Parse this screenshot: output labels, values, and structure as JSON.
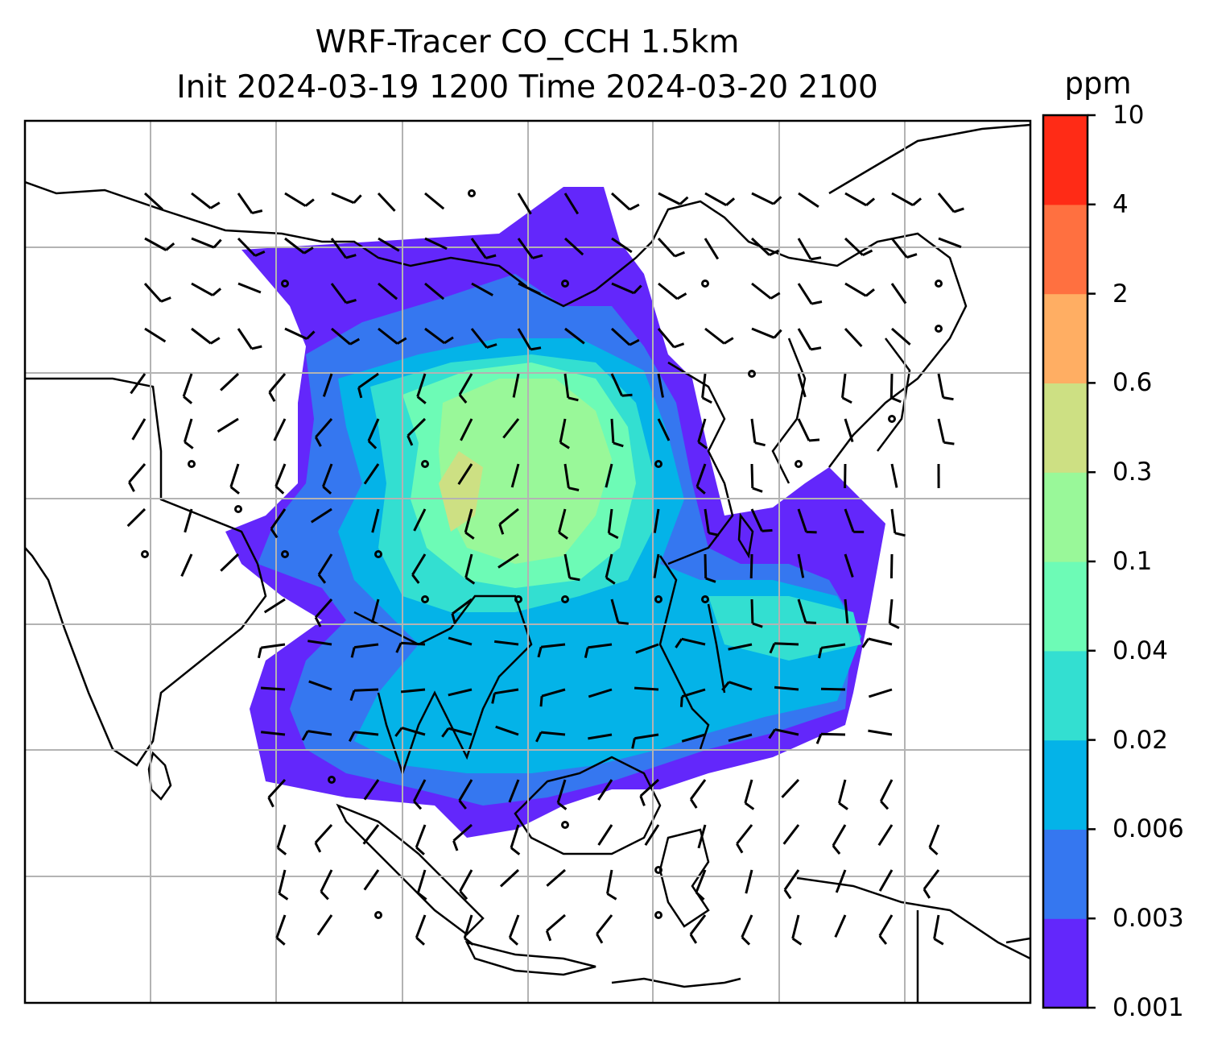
{
  "title": {
    "line1": "WRF-Tracer CO_CCH 1.5km",
    "line2": "Init 2024-03-19 1200 Time 2024-03-20 2100"
  },
  "colorbar": {
    "unit": "ppm",
    "ticks": [
      "10",
      "4",
      "2",
      "0.6",
      "0.3",
      "0.1",
      "0.04",
      "0.02",
      "0.006",
      "0.003",
      "0.001"
    ],
    "levels_low_to_high": [
      0.001,
      0.003,
      0.006,
      0.02,
      0.04,
      0.1,
      0.3,
      0.6,
      2,
      4,
      10
    ],
    "colors_low_to_high": [
      "#6327fb",
      "#3577f0",
      "#04b3e8",
      "#33dfd1",
      "#6dfbb6",
      "#99f899",
      "#cde083",
      "#ffae63",
      "#ff7040",
      "#ff2b16"
    ]
  },
  "map": {
    "fields": [
      "CO tracer concentration (filled)",
      "wind barbs"
    ],
    "gridlines": true
  }
}
